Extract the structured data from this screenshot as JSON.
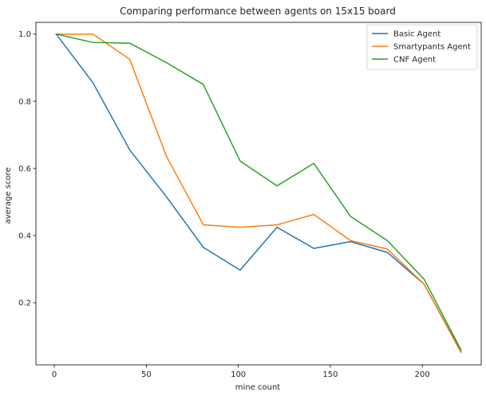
{
  "chart_data": {
    "type": "line",
    "title": "Comparing performance between agents on 15x15 board",
    "xlabel": "mine count",
    "ylabel": "average score",
    "x": [
      1,
      21,
      41,
      61,
      81,
      101,
      121,
      141,
      161,
      181,
      201,
      221
    ],
    "xlim": [
      -10,
      232
    ],
    "ylim": [
      0.015,
      1.035
    ],
    "xticks": [
      0,
      50,
      100,
      150,
      200
    ],
    "yticks": [
      0.2,
      0.4,
      0.6,
      0.8,
      1.0
    ],
    "xtick_labels": [
      "0",
      "50",
      "100",
      "150",
      "200"
    ],
    "ytick_labels": [
      "0.2",
      "0.4",
      "0.6",
      "0.8",
      "1.0"
    ],
    "grid": false,
    "legend_position": "top-right",
    "series": [
      {
        "name": "Basic Agent",
        "color": "#1f77b4",
        "values": [
          1.0,
          0.855,
          0.655,
          0.515,
          0.365,
          0.297,
          0.425,
          0.362,
          0.382,
          0.35,
          0.255,
          0.055
        ]
      },
      {
        "name": "Smartypants Agent",
        "color": "#ff7f0e",
        "values": [
          1.0,
          1.0,
          0.925,
          0.635,
          0.432,
          0.425,
          0.432,
          0.463,
          0.385,
          0.36,
          0.255,
          0.052
        ]
      },
      {
        "name": "CNF Agent",
        "color": "#2ca02c",
        "values": [
          1.0,
          0.975,
          0.973,
          0.915,
          0.85,
          0.622,
          0.548,
          0.615,
          0.457,
          0.385,
          0.27,
          0.06
        ]
      }
    ]
  }
}
